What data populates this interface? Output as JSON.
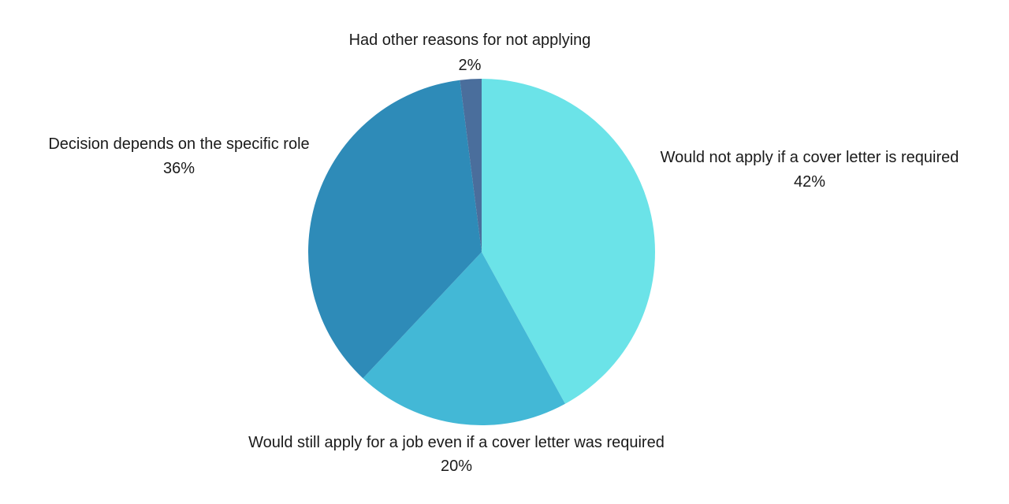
{
  "chart_data": {
    "type": "pie",
    "start_angle_deg": 0,
    "direction": "clockwise",
    "slices": [
      {
        "label": "Would not apply if a cover letter is required",
        "value": 42,
        "value_label": "42%",
        "color": "#6be3e8"
      },
      {
        "label": "Would still apply for a job even if a cover letter was required",
        "value": 20,
        "value_label": "20%",
        "color": "#43b8d6"
      },
      {
        "label": "Decision depends on the specific role",
        "value": 36,
        "value_label": "36%",
        "color": "#2e8bb8"
      },
      {
        "label": "Had other reasons for not applying",
        "value": 2,
        "value_label": "2%",
        "color": "#4a6e9c"
      }
    ]
  }
}
